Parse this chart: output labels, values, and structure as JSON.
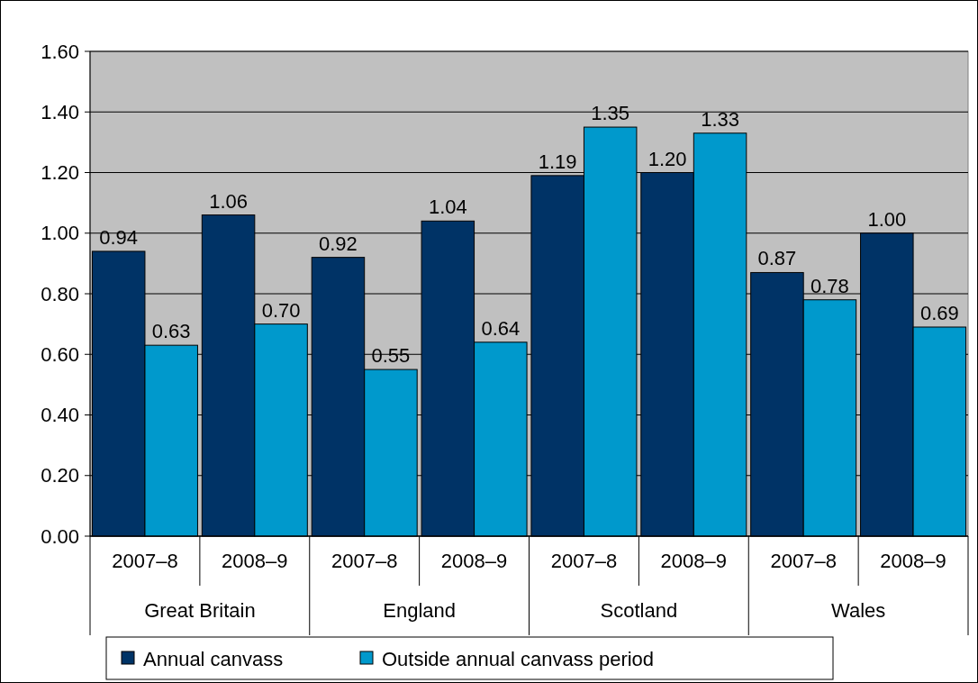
{
  "chart_data": {
    "type": "bar",
    "categories": [
      "2007–8",
      "2008–9",
      "2007–8",
      "2008–9",
      "2007–8",
      "2008–9",
      "2007–8",
      "2008–9"
    ],
    "annotations": [
      "Great Britain",
      "England",
      "Scotland",
      "Wales"
    ],
    "series": [
      {
        "name": "Annual canvass",
        "color": "#003366",
        "values": [
          0.94,
          1.06,
          0.92,
          1.04,
          1.19,
          1.2,
          0.87,
          1.0
        ],
        "value_labels": [
          "0.94",
          "1.06",
          "0.92",
          "1.04",
          "1.19",
          "1.20",
          "0.87",
          "1.00"
        ]
      },
      {
        "name": "Outside annual canvass period",
        "color": "#0099cc",
        "values": [
          0.63,
          0.7,
          0.55,
          0.64,
          1.35,
          1.33,
          0.78,
          0.69
        ],
        "value_labels": [
          "0.63",
          "0.70",
          "0.55",
          "0.64",
          "1.35",
          "1.33",
          "0.78",
          "0.69"
        ]
      }
    ],
    "ylim": [
      0,
      1.6
    ],
    "yticks": [
      {
        "value": 0,
        "label": "0.00"
      },
      {
        "value": 0.2,
        "label": "0.20"
      },
      {
        "value": 0.4,
        "label": "0.40"
      },
      {
        "value": 0.6,
        "label": "0.60"
      },
      {
        "value": 0.8,
        "label": "0.80"
      },
      {
        "value": 1,
        "label": "1.00"
      },
      {
        "value": 1.2,
        "label": "1.20"
      },
      {
        "value": 1.4,
        "label": "1.40"
      },
      {
        "value": 1.6,
        "label": "1.60"
      }
    ],
    "grid": "y",
    "legend": "bottom"
  }
}
